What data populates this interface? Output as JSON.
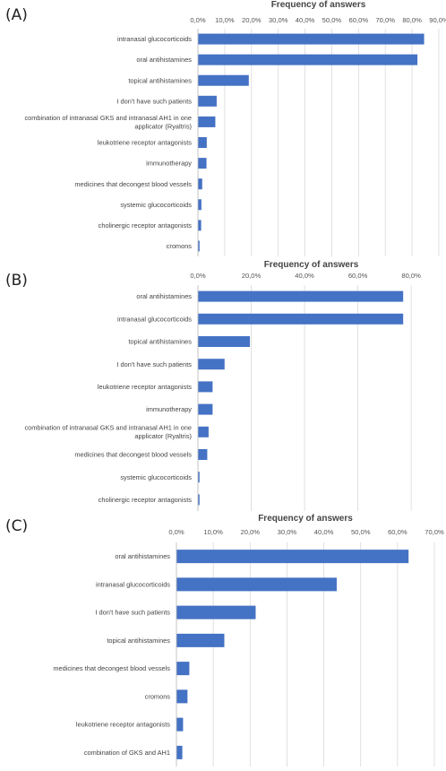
{
  "chart_data": [
    {
      "type": "bar",
      "orientation": "horizontal",
      "panel": "(A)",
      "title": "Frequency of answers",
      "xlim": [
        0,
        90
      ],
      "ticks": [
        "0,0%",
        "10,0%",
        "20,0%",
        "30,0%",
        "40,0%",
        "50,0%",
        "60,0%",
        "70,0%",
        "80,0%",
        "90,0%"
      ],
      "tick_values": [
        0,
        10,
        20,
        30,
        40,
        50,
        60,
        70,
        80,
        90
      ],
      "grid": true,
      "categories": [
        [
          "intranasal glucocorticoids"
        ],
        [
          "oral antihistamines"
        ],
        [
          "topical antihistamines"
        ],
        [
          "I don't have such patients"
        ],
        [
          "combination of intranasal GKS and intranasal AH1 in one",
          "applicator (Ryaltris)"
        ],
        [
          "leukotriene receptor antagonists"
        ],
        [
          "immunotherapy"
        ],
        [
          "medicines that decongest blood vessels"
        ],
        [
          "systemic glucocorticoids"
        ],
        [
          "cholinergic receptor antagonists"
        ],
        [
          "cromons"
        ]
      ],
      "values": [
        84.5,
        82.0,
        19.0,
        7.0,
        6.5,
        3.3,
        3.2,
        1.6,
        1.3,
        1.2,
        0.6
      ]
    },
    {
      "type": "bar",
      "orientation": "horizontal",
      "panel": "(B)",
      "title": "Frequency of answers",
      "xlim": [
        0,
        85
      ],
      "ticks": [
        "0,0%",
        "20,0%",
        "40,0%",
        "60,0%",
        "80,0%"
      ],
      "tick_values": [
        0,
        20,
        40,
        60,
        80
      ],
      "grid": true,
      "categories": [
        [
          "oral antihistamines"
        ],
        [
          "intranasal glucocorticoids"
        ],
        [
          "topical antihistamines"
        ],
        [
          "I don't have such patients"
        ],
        [
          "leukotriene receptor antagonists"
        ],
        [
          "immunotherapy"
        ],
        [
          "combination of intranasal GKS and intranasal AH1 in one",
          "applicator (Ryaltris)"
        ],
        [
          "medicines that decongest blood vessels"
        ],
        [
          "systemic glucocorticoids"
        ],
        [
          "cholinergic receptor antagonists"
        ]
      ],
      "values": [
        77.0,
        77.0,
        19.5,
        10.0,
        5.5,
        5.5,
        4.0,
        3.5,
        0.6,
        0.6
      ]
    },
    {
      "type": "bar",
      "orientation": "horizontal",
      "panel": "(C)",
      "title": "Frequency of answers",
      "xlim": [
        0,
        70
      ],
      "ticks": [
        "0,0%",
        "10,0%",
        "20,0%",
        "30,0%",
        "40,0%",
        "50,0%",
        "60,0%",
        "70,0%"
      ],
      "tick_values": [
        0,
        10,
        20,
        30,
        40,
        50,
        60,
        70
      ],
      "grid": true,
      "categories": [
        [
          "oral antihistamines"
        ],
        [
          "intranasal glucocorticoids"
        ],
        [
          "I don't have such patients"
        ],
        [
          "topical antihistamines"
        ],
        [
          "medicines that decongest blood vessels"
        ],
        [
          "cromons"
        ],
        [
          "leukotriene receptor antagonists"
        ],
        [
          "combination of GKS and AH1"
        ]
      ],
      "values": [
        63.0,
        43.5,
        21.5,
        13.0,
        3.5,
        3.0,
        1.8,
        1.6
      ]
    }
  ]
}
